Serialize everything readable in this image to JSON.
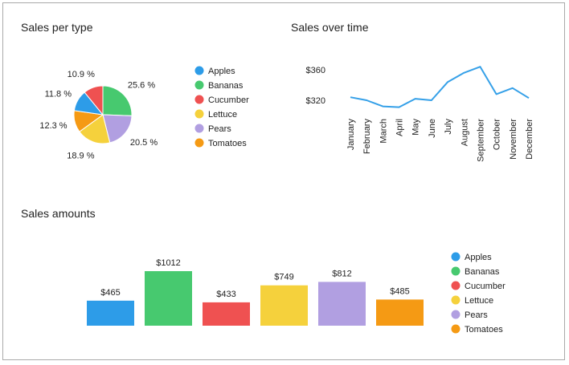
{
  "colors": {
    "Apples": "#2d9ce8",
    "Bananas": "#47c96f",
    "Cucumber": "#ef5151",
    "Lettuce": "#f5d13c",
    "Pears": "#b19fe1",
    "Tomatoes": "#f59a14",
    "line": "#35a0e8"
  },
  "chart_data": [
    {
      "type": "pie",
      "title": "Sales per type",
      "categories": [
        "Apples",
        "Bananas",
        "Cucumber",
        "Lettuce",
        "Pears",
        "Tomatoes"
      ],
      "slices": [
        {
          "label": "Bananas",
          "value": 25.6,
          "text": "25.6 %"
        },
        {
          "label": "Pears",
          "value": 20.5,
          "text": "20.5 %"
        },
        {
          "label": "Lettuce",
          "value": 18.9,
          "text": "18.9 %"
        },
        {
          "label": "Tomatoes",
          "value": 12.3,
          "text": "12.3 %"
        },
        {
          "label": "Apples",
          "value": 11.8,
          "text": "11.8 %"
        },
        {
          "label": "Cucumber",
          "value": 10.9,
          "text": "10.9 %"
        }
      ],
      "legend": [
        "Apples",
        "Bananas",
        "Cucumber",
        "Lettuce",
        "Pears",
        "Tomatoes"
      ]
    },
    {
      "type": "line",
      "title": "Sales over time",
      "x": [
        "January",
        "February",
        "March",
        "April",
        "May",
        "June",
        "July",
        "August",
        "September",
        "October",
        "November",
        "December"
      ],
      "y": [
        324,
        320,
        312,
        311,
        322,
        320,
        344,
        356,
        364,
        328,
        336,
        323
      ],
      "yticks": [
        {
          "value": 320,
          "text": "$320"
        },
        {
          "value": 360,
          "text": "$360"
        }
      ],
      "ylim": [
        300,
        370
      ]
    },
    {
      "type": "bar",
      "title": "Sales amounts",
      "categories": [
        "Apples",
        "Bananas",
        "Cucumber",
        "Lettuce",
        "Pears",
        "Tomatoes"
      ],
      "values": [
        465,
        1012,
        433,
        749,
        812,
        485
      ],
      "value_labels": [
        "$465",
        "$1012",
        "$433",
        "$749",
        "$812",
        "$485"
      ],
      "ylim": [
        0,
        1012
      ],
      "legend": [
        "Apples",
        "Bananas",
        "Cucumber",
        "Lettuce",
        "Pears",
        "Tomatoes"
      ]
    }
  ]
}
